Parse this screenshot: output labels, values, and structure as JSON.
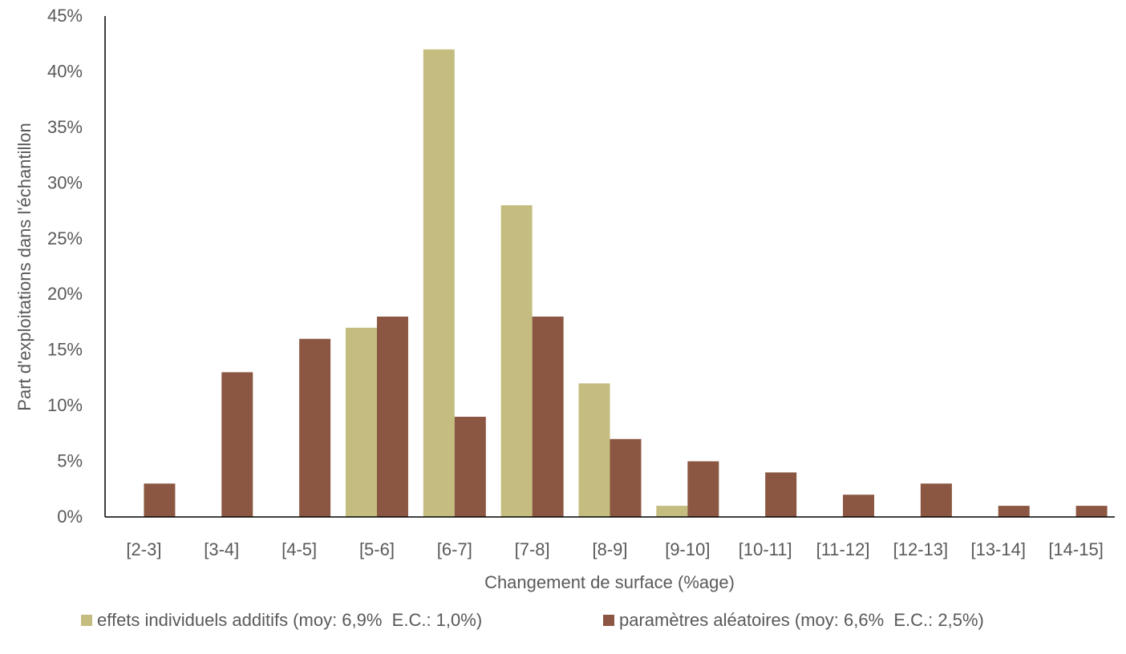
{
  "chart_data": {
    "type": "bar",
    "title": "",
    "xlabel": "Changement de surface (%age)",
    "ylabel": "Part d'exploitations dans l'échantillon",
    "ylim": [
      0,
      45
    ],
    "yticks": [
      "0%",
      "5%",
      "10%",
      "15%",
      "20%",
      "25%",
      "30%",
      "35%",
      "40%",
      "45%"
    ],
    "grid": false,
    "legend_position": "bottom",
    "categories": [
      "[2-3]",
      "[3-4]",
      "[4-5]",
      "[5-6]",
      "[6-7]",
      "[7-8]",
      "[8-9]",
      "[9-10]",
      "[10-11]",
      "[11-12]",
      "[12-13]",
      "[13-14]",
      "[14-15]"
    ],
    "series": [
      {
        "name": "effets individuels additifs (moy: 6,9%  E.C.: 1,0%)",
        "color": "#c4bd7f",
        "values": [
          0,
          0,
          0,
          17,
          42,
          28,
          12,
          1,
          0,
          0,
          0,
          0,
          0
        ]
      },
      {
        "name": "paramètres aléatoires (moy: 6,6%  E.C.: 2,5%)",
        "color": "#8b5742",
        "values": [
          3,
          13,
          16,
          18,
          9,
          18,
          7,
          5,
          4,
          2,
          3,
          1,
          1
        ]
      }
    ]
  }
}
